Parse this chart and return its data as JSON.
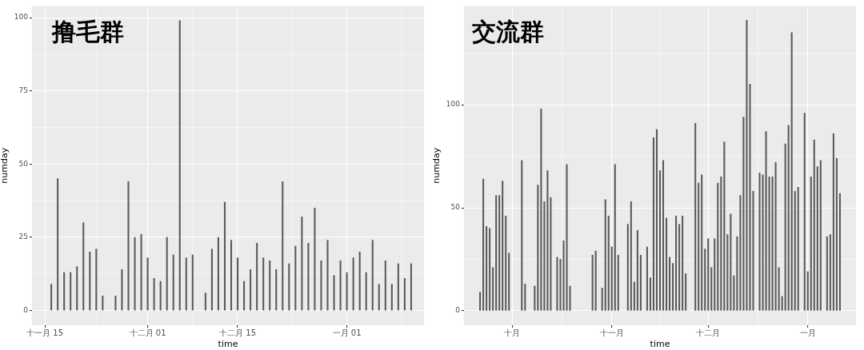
{
  "chart_data": [
    {
      "type": "bar",
      "title": "撸毛群",
      "xlabel": "time",
      "ylabel": "numday",
      "color": "#595959",
      "grid": true,
      "categories": [
        null,
        null,
        "十一月 15",
        null,
        null,
        null,
        null,
        null,
        null,
        null,
        null,
        null,
        null,
        null,
        null,
        null,
        null,
        null,
        "十二月 01",
        null,
        null,
        null,
        null,
        null,
        null,
        null,
        null,
        null,
        null,
        null,
        null,
        null,
        "十二月 15",
        null,
        null,
        null,
        null,
        null,
        null,
        null,
        null,
        null,
        null,
        null,
        null,
        null,
        null,
        null,
        null,
        "一月 01",
        null,
        null,
        null,
        null,
        null,
        null,
        null,
        null,
        null,
        null,
        null,
        null
      ],
      "values": [
        null,
        null,
        null,
        9,
        45,
        13,
        13,
        15,
        30,
        20,
        21,
        5,
        null,
        5,
        14,
        44,
        25,
        26,
        18,
        11,
        10,
        25,
        19,
        99,
        18,
        19,
        null,
        6,
        21,
        25,
        37,
        24,
        18,
        10,
        14,
        23,
        18,
        17,
        14,
        44,
        16,
        22,
        32,
        23,
        35,
        17,
        24,
        12,
        17,
        13,
        18,
        20,
        13,
        24,
        9,
        17,
        9,
        16,
        11,
        16,
        null,
        null
      ],
      "ylim": [
        -5,
        104
      ],
      "yticks": [
        0,
        25,
        50,
        75,
        100
      ]
    },
    {
      "type": "bar",
      "title": "交流群",
      "xlabel": "time",
      "ylabel": "numday",
      "color": "#595959",
      "grid": true,
      "categories": [
        null,
        null,
        null,
        null,
        null,
        null,
        null,
        null,
        null,
        null,
        null,
        null,
        null,
        null,
        null,
        "十月",
        null,
        null,
        null,
        null,
        null,
        null,
        null,
        null,
        null,
        null,
        null,
        null,
        null,
        null,
        null,
        null,
        null,
        null,
        null,
        null,
        null,
        null,
        null,
        null,
        null,
        null,
        null,
        null,
        null,
        null,
        "十一月",
        null,
        null,
        null,
        null,
        null,
        null,
        null,
        null,
        null,
        null,
        null,
        null,
        null,
        null,
        null,
        null,
        null,
        null,
        null,
        null,
        null,
        null,
        null,
        null,
        null,
        null,
        null,
        null,
        null,
        "十二月",
        null,
        null,
        null,
        null,
        null,
        null,
        null,
        null,
        null,
        null,
        null,
        null,
        null,
        null,
        null,
        null,
        null,
        null,
        null,
        null,
        null,
        null,
        null,
        null,
        null,
        null,
        null,
        null,
        null,
        null,
        "一月",
        null,
        null,
        null,
        null,
        null,
        null,
        null,
        null,
        null,
        null,
        null,
        null,
        null,
        null,
        null
      ],
      "values": [
        null,
        null,
        null,
        null,
        null,
        9,
        64,
        41,
        40,
        21,
        56,
        56,
        63,
        46,
        28,
        null,
        null,
        null,
        73,
        13,
        null,
        null,
        12,
        61,
        98,
        53,
        68,
        55,
        null,
        26,
        25,
        34,
        71,
        12,
        null,
        null,
        null,
        null,
        null,
        null,
        27,
        29,
        null,
        11,
        54,
        46,
        31,
        71,
        27,
        null,
        null,
        42,
        53,
        14,
        39,
        27,
        null,
        31,
        16,
        84,
        88,
        68,
        73,
        45,
        26,
        23,
        46,
        42,
        46,
        18,
        null,
        null,
        91,
        62,
        66,
        30,
        35,
        21,
        35,
        62,
        65,
        82,
        37,
        47,
        17,
        36,
        56,
        94,
        141,
        110,
        58,
        null,
        67,
        66,
        87,
        65,
        65,
        72,
        21,
        7,
        81,
        90,
        135,
        58,
        60,
        null,
        96,
        19,
        65,
        83,
        70,
        73,
        null,
        36,
        37,
        86,
        74,
        57,
        null,
        null,
        null,
        null,
        null
      ],
      "ylim": [
        -7,
        148
      ],
      "yticks": [
        0,
        50,
        100
      ]
    }
  ]
}
